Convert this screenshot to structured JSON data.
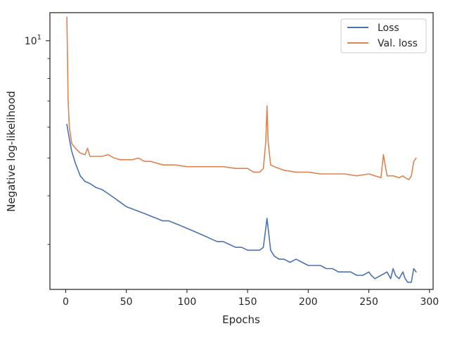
{
  "chart_data": {
    "type": "line",
    "xlabel": "Epochs",
    "ylabel": "Negative log-likelihood",
    "yscale": "log",
    "xlim": [
      -13,
      303
    ],
    "ylim": [
      2.3,
      11.8
    ],
    "x_ticks": [
      0,
      50,
      100,
      150,
      200,
      250,
      300
    ],
    "x_tick_labels": [
      "0",
      "50",
      "100",
      "150",
      "200",
      "250",
      "300"
    ],
    "y_major_ticks": [
      10
    ],
    "y_major_tick_labels": [
      "10"
    ],
    "y_minor_ticks": [
      3,
      4,
      5,
      6,
      7,
      8,
      9
    ],
    "grid": false,
    "legend_position": "top-right",
    "colors": {
      "Loss": "#4c72b0",
      "Val. loss": "#dd8452",
      "frame": "#262626"
    },
    "series": [
      {
        "name": "Loss",
        "x": [
          1,
          3,
          5,
          8,
          12,
          16,
          20,
          25,
          30,
          35,
          40,
          45,
          50,
          55,
          60,
          65,
          70,
          75,
          80,
          85,
          90,
          95,
          100,
          105,
          110,
          115,
          120,
          125,
          130,
          135,
          140,
          145,
          150,
          155,
          160,
          163,
          165,
          166,
          167,
          169,
          172,
          176,
          180,
          185,
          190,
          195,
          200,
          205,
          210,
          215,
          220,
          225,
          230,
          235,
          240,
          245,
          250,
          252,
          255,
          260,
          265,
          268,
          270,
          272,
          275,
          278,
          280,
          282,
          285,
          287,
          289
        ],
        "values": [
          6.1,
          5.6,
          5.2,
          4.85,
          4.5,
          4.35,
          4.3,
          4.2,
          4.15,
          4.05,
          3.95,
          3.85,
          3.75,
          3.7,
          3.65,
          3.6,
          3.55,
          3.5,
          3.45,
          3.45,
          3.4,
          3.35,
          3.3,
          3.25,
          3.2,
          3.15,
          3.1,
          3.05,
          3.05,
          3.0,
          2.95,
          2.95,
          2.9,
          2.9,
          2.9,
          2.95,
          3.3,
          3.5,
          3.3,
          2.9,
          2.8,
          2.75,
          2.75,
          2.7,
          2.75,
          2.7,
          2.65,
          2.65,
          2.65,
          2.6,
          2.6,
          2.55,
          2.55,
          2.55,
          2.5,
          2.5,
          2.55,
          2.5,
          2.45,
          2.5,
          2.55,
          2.45,
          2.6,
          2.5,
          2.45,
          2.55,
          2.45,
          2.4,
          2.4,
          2.6,
          2.55
        ]
      },
      {
        "name": "Val. loss",
        "x": [
          1,
          2,
          3,
          5,
          8,
          12,
          16,
          18,
          20,
          25,
          30,
          35,
          40,
          45,
          50,
          55,
          60,
          65,
          70,
          75,
          80,
          90,
          100,
          110,
          120,
          130,
          140,
          150,
          155,
          160,
          163,
          165,
          166,
          167,
          169,
          172,
          176,
          180,
          190,
          200,
          210,
          220,
          230,
          240,
          250,
          255,
          260,
          262,
          265,
          270,
          275,
          278,
          280,
          283,
          285,
          287,
          289
        ],
        "values": [
          11.5,
          7.0,
          6.0,
          5.45,
          5.3,
          5.15,
          5.1,
          5.3,
          5.05,
          5.05,
          5.05,
          5.1,
          5.0,
          4.95,
          4.95,
          4.95,
          5.0,
          4.9,
          4.9,
          4.85,
          4.8,
          4.8,
          4.75,
          4.75,
          4.75,
          4.75,
          4.7,
          4.7,
          4.6,
          4.6,
          4.7,
          5.5,
          6.8,
          5.5,
          4.8,
          4.75,
          4.7,
          4.65,
          4.6,
          4.6,
          4.55,
          4.55,
          4.55,
          4.5,
          4.55,
          4.5,
          4.45,
          5.1,
          4.5,
          4.5,
          4.45,
          4.5,
          4.45,
          4.4,
          4.5,
          4.9,
          5.0
        ]
      }
    ]
  }
}
